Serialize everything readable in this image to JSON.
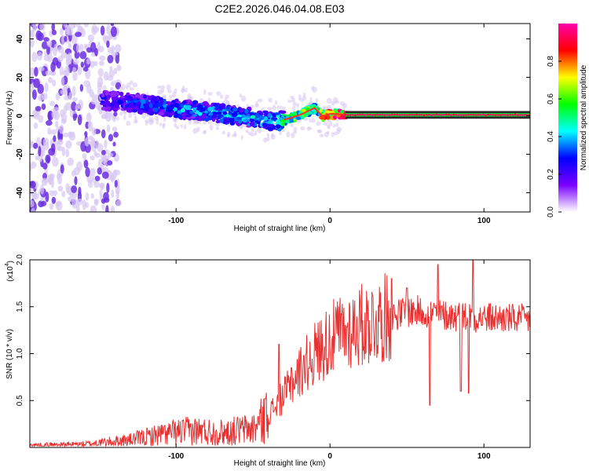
{
  "title": "C2E2.2026.046.04.08.E03",
  "colors": {
    "line": "#e83030",
    "axis": "#000000",
    "band": "#2a2a2a",
    "scatter_light": "#d7c6f2",
    "scatter_dark": "#6a2ee0"
  },
  "chart_data": [
    {
      "type": "heatmap",
      "title": "C2E2.2026.046.04.08.E03",
      "xlabel": "Height of straight line (km)",
      "ylabel": "Frequency (Hz)",
      "xlim": [
        -195,
        130
      ],
      "ylim": [
        -50,
        48
      ],
      "xticks": [
        -100,
        0,
        100
      ],
      "xtick_labels": [
        "-100",
        "0",
        "100"
      ],
      "yticks": [
        -40,
        -20,
        0,
        20,
        40
      ],
      "ytick_labels": [
        "-40",
        "-20",
        "0",
        "20",
        "40"
      ],
      "colorbar": {
        "label": "Normalized spectral amplitude",
        "range": [
          0,
          1
        ],
        "ticks": [
          0,
          0.2,
          0.4,
          0.6,
          0.8
        ],
        "tick_labels": [
          "0.0",
          "0.2",
          "0.4",
          "0.6",
          "0.8"
        ],
        "stops": [
          "#ffffff",
          "#7a00ff",
          "#0000ff",
          "#00ffff",
          "#00ff00",
          "#ffff00",
          "#ff0000",
          "#ff00aa"
        ]
      },
      "ridge": {
        "x": [
          -145,
          -120,
          -100,
          -80,
          -60,
          -45,
          -35,
          -25,
          -18,
          -13,
          -10,
          -5,
          0,
          5,
          10,
          130
        ],
        "freq": [
          8,
          6,
          4,
          2,
          0,
          -2,
          -3,
          -1,
          1,
          3,
          4,
          0,
          1,
          1,
          0.5,
          0.5
        ],
        "amplitude": [
          0.3,
          0.35,
          0.4,
          0.42,
          0.4,
          0.45,
          0.5,
          0.6,
          0.7,
          0.6,
          0.5,
          0.75,
          0.85,
          0.9,
          0.95,
          0.95
        ]
      },
      "noise_region_x": [
        -195,
        -145
      ],
      "band": {
        "x": [
          10,
          130
        ],
        "freq_low": -1.5,
        "freq_high": 2.5
      }
    },
    {
      "type": "line",
      "xlabel": "Height of straight line (km)",
      "ylabel": "SNR (10 * v/v)",
      "multiplier_label": "(x10",
      "multiplier_exponent": "4",
      "xlim": [
        -195,
        130
      ],
      "ylim": [
        0,
        20000
      ],
      "xticks": [
        -100,
        0,
        100
      ],
      "xtick_labels": [
        "-100",
        "0",
        "100"
      ],
      "yticks": [
        5000,
        10000,
        15000,
        20000
      ],
      "ytick_labels": [
        "0.5",
        "1.0",
        "1.5",
        "2.0"
      ],
      "series": [
        {
          "name": "SNR",
          "envelope_x": [
            -195,
            -160,
            -130,
            -110,
            -90,
            -70,
            -50,
            -40,
            -30,
            -20,
            -10,
            0,
            10,
            20,
            30,
            40,
            50,
            60,
            70,
            80,
            90,
            100,
            110,
            120,
            130
          ],
          "envelope_y": [
            250,
            350,
            800,
            1400,
            1800,
            1600,
            2000,
            3500,
            5500,
            8000,
            10000,
            11500,
            12500,
            13000,
            13500,
            14000,
            14500,
            14500,
            14200,
            14000,
            14000,
            13800,
            13800,
            13700,
            13600
          ],
          "spikes": [
            {
              "x": -60,
              "y": 3200
            },
            {
              "x": -42,
              "y": 5200
            },
            {
              "x": -33,
              "y": 11000
            },
            {
              "x": -25,
              "y": 8500
            },
            {
              "x": -17,
              "y": 9800
            },
            {
              "x": 10,
              "y": 13000
            },
            {
              "x": 40,
              "y": 18000
            },
            {
              "x": 50,
              "y": 17000
            },
            {
              "x": 65,
              "y": 4500
            },
            {
              "x": 70,
              "y": 19500
            },
            {
              "x": 85,
              "y": 6000
            },
            {
              "x": 93,
              "y": 20000
            },
            {
              "x": 90,
              "y": 5800
            }
          ]
        }
      ]
    }
  ]
}
